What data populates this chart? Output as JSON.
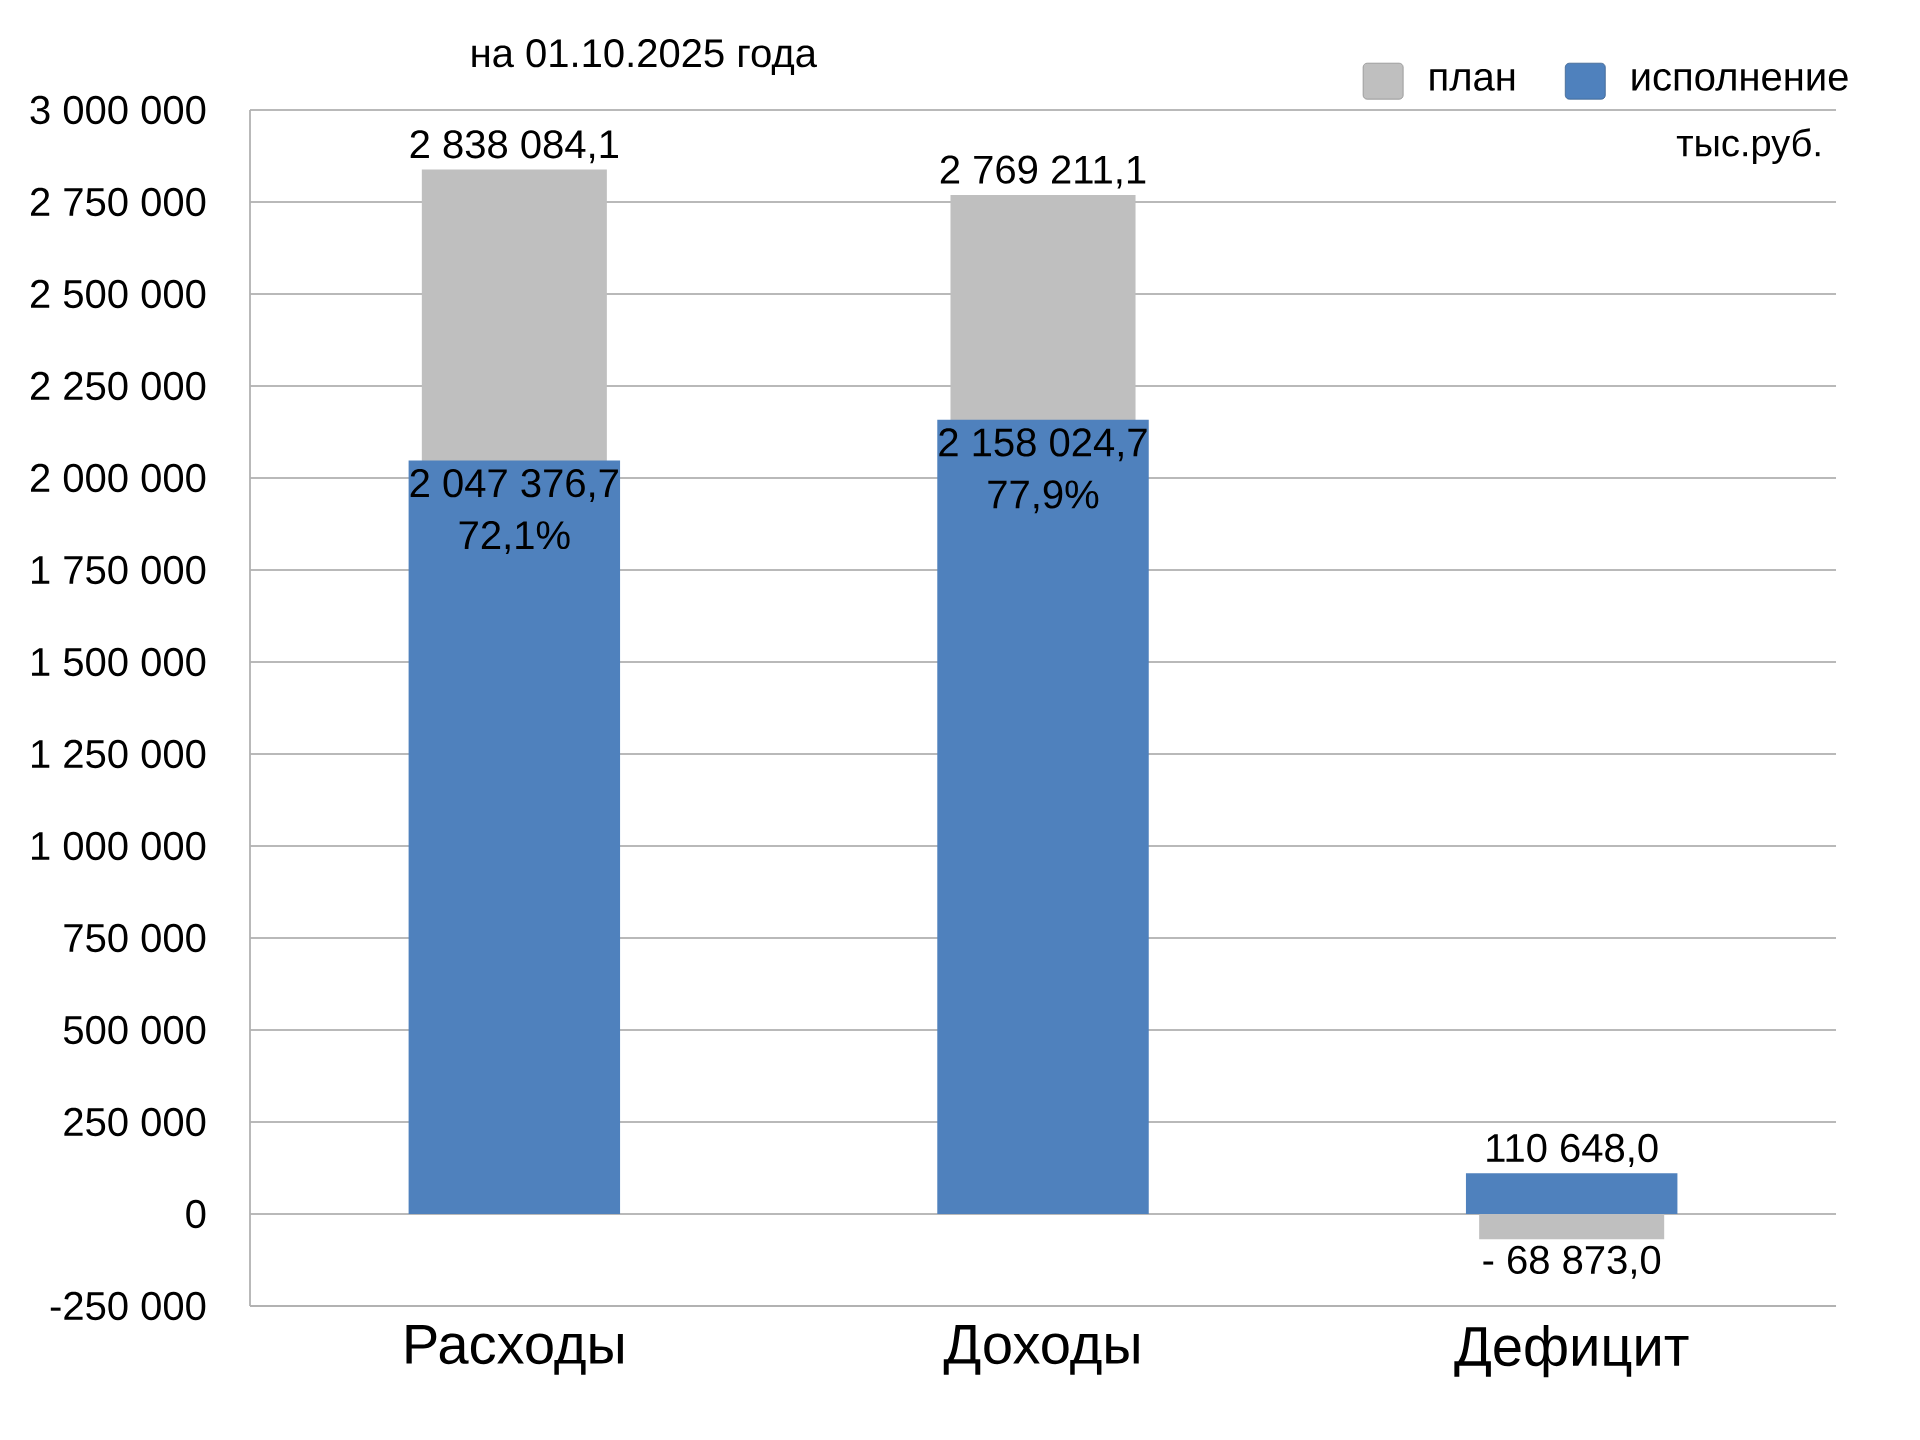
{
  "chart_data": {
    "type": "bar",
    "title": "на 01.10.2025 года",
    "categories": [
      "Расходы",
      "Доходы",
      "Дефицит"
    ],
    "series": [
      {
        "name": "план",
        "color": "#bfbfbf",
        "values": [
          2838084.1,
          2769211.1,
          -68873.0
        ],
        "value_labels": [
          "2 838 084,1",
          "2 769 211,1",
          "- 68 873,0"
        ]
      },
      {
        "name": "исполнение",
        "color": "#4f81bd",
        "values": [
          2047376.7,
          2158024.7,
          110648.0
        ],
        "value_labels": [
          "2 047 376,7",
          "2 158 024,7",
          "110 648,0"
        ]
      }
    ],
    "ylim": [
      -250000,
      3000000
    ],
    "yticks": [
      {
        "value": -250000,
        "label": "-250 000"
      },
      0,
      {
        "value": 250000,
        "label": "250 000"
      },
      {
        "value": 500000,
        "label": "500 000"
      },
      {
        "value": 750000,
        "label": "750 000"
      },
      {
        "value": 1000000,
        "label": "1 000 000"
      },
      {
        "value": 1250000,
        "label": "1 250 000"
      },
      {
        "value": 1500000,
        "label": "1 500 000"
      },
      {
        "value": 1750000,
        "label": "1 750 000"
      },
      {
        "value": 2000000,
        "label": "2 000 000"
      },
      {
        "value": 2250000,
        "label": "2 250 000"
      },
      {
        "value": 2500000,
        "label": "2 500 000"
      },
      {
        "value": 2750000,
        "label": "2 750 000"
      },
      {
        "value": 3000000,
        "label": "3 000 000"
      }
    ],
    "grid": "y",
    "legend": "top right",
    "annotations": [
      {
        "text": "72,1%",
        "x": "Расходы",
        "y": 2047376.7
      },
      {
        "text": "77,9%",
        "x": "Доходы",
        "y": 2158024.7
      },
      "тыс.руб."
    ]
  }
}
